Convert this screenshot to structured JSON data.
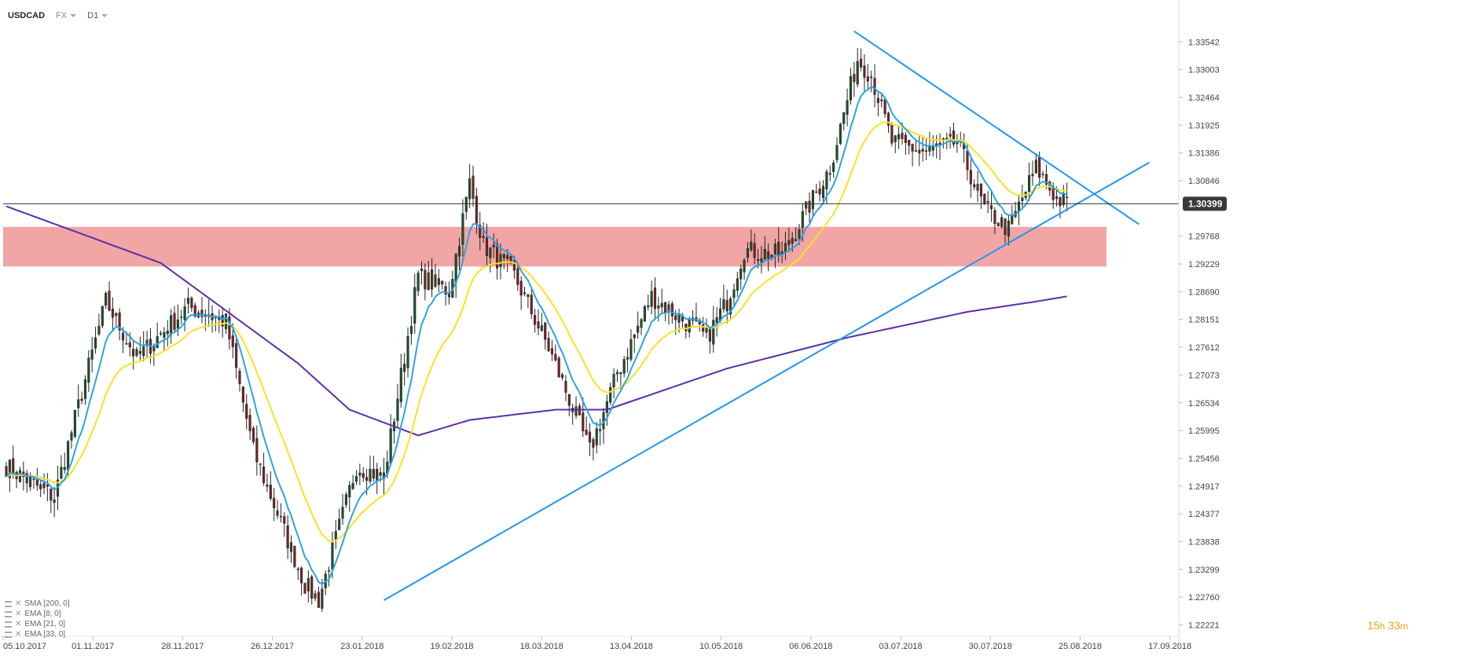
{
  "header": {
    "symbol": "USDCAD",
    "market": "FX",
    "timeframe": "D1"
  },
  "timer": {
    "hours": "15",
    "h": "h",
    "minutes": "33",
    "m": "m"
  },
  "legend": [
    {
      "label": "SMA [200, 0]"
    },
    {
      "label": "EMA [8, 0]"
    },
    {
      "label": "EMA [21, 0]"
    },
    {
      "label": "EMA [33, 0]"
    }
  ],
  "colors": {
    "up": "#1f4f2a",
    "down": "#7a1f24",
    "ema_fast": "#2aa4e6",
    "ema_slow": "#ffe021",
    "sma200": "#5b2ea6",
    "trend": "#2196f3",
    "zone": "#f0a0a0",
    "current": "#333333"
  },
  "chart_data": {
    "type": "candlestick",
    "symbol": "USDCAD",
    "ylim": [
      1.22,
      1.3405
    ],
    "x_ticks": [
      "05.10.2017",
      "01.11.2017",
      "28.11.2017",
      "26.12.2017",
      "23.01.2018",
      "19.02.2018",
      "18.03.2018",
      "13.04.2018",
      "10.05.2018",
      "06.06.2018",
      "03.07.2018",
      "30.07.2018",
      "25.08.2018",
      "17.09.2018"
    ],
    "y_ticks": [
      "1.33542",
      "1.33003",
      "1.32464",
      "1.31925",
      "1.31386",
      "1.30846",
      "1.30307",
      "1.29768",
      "1.29229",
      "1.28690",
      "1.28151",
      "1.27612",
      "1.27073",
      "1.26534",
      "1.25995",
      "1.25456",
      "1.24917",
      "1.24377",
      "1.23838",
      "1.23299",
      "1.22760",
      "1.22221"
    ],
    "current_price": "1.30399",
    "current_value": 1.30399,
    "zone": [
      1.2918,
      1.2995
    ],
    "close_keypoints": [
      [
        0,
        1.253
      ],
      [
        14,
        1.247
      ],
      [
        29,
        1.285
      ],
      [
        38,
        1.274
      ],
      [
        53,
        1.284
      ],
      [
        64,
        1.281
      ],
      [
        72,
        1.256
      ],
      [
        87,
        1.23
      ],
      [
        91,
        1.227
      ],
      [
        102,
        1.253
      ],
      [
        110,
        1.251
      ],
      [
        120,
        1.29
      ],
      [
        129,
        1.287
      ],
      [
        135,
        1.308
      ],
      [
        139,
        1.296
      ],
      [
        148,
        1.29
      ],
      [
        158,
        1.276
      ],
      [
        170,
        1.256
      ],
      [
        178,
        1.271
      ],
      [
        188,
        1.286
      ],
      [
        198,
        1.281
      ],
      [
        204,
        1.278
      ],
      [
        210,
        1.285
      ],
      [
        215,
        1.295
      ],
      [
        226,
        1.294
      ],
      [
        240,
        1.311
      ],
      [
        248,
        1.332
      ],
      [
        252,
        1.329
      ],
      [
        258,
        1.316
      ],
      [
        268,
        1.314
      ],
      [
        277,
        1.316
      ],
      [
        285,
        1.303
      ],
      [
        292,
        1.299
      ],
      [
        300,
        1.311
      ],
      [
        306,
        1.305
      ],
      [
        309,
        1.304
      ]
    ],
    "sma200_keypoints": [
      [
        0,
        1.3035
      ],
      [
        45,
        1.2925
      ],
      [
        85,
        1.273
      ],
      [
        100,
        1.264
      ],
      [
        120,
        1.259
      ],
      [
        135,
        1.262
      ],
      [
        160,
        1.264
      ],
      [
        175,
        1.264
      ],
      [
        210,
        1.272
      ],
      [
        245,
        1.278
      ],
      [
        280,
        1.283
      ],
      [
        300,
        1.285
      ],
      [
        309,
        1.286
      ]
    ],
    "ema_fast_label": "EMA [8, 0]",
    "ema_slow_label": "EMA [21, 0]",
    "trendlines": [
      {
        "from": [
          110,
          1.227
        ],
        "to": [
          333,
          1.312
        ]
      },
      {
        "from": [
          247,
          1.3375
        ],
        "to": [
          330,
          1.3
        ]
      }
    ]
  }
}
